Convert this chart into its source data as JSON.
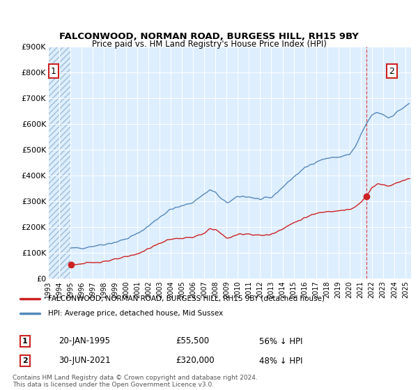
{
  "title": "FALCONWOOD, NORMAN ROAD, BURGESS HILL, RH15 9BY",
  "subtitle": "Price paid vs. HM Land Registry's House Price Index (HPI)",
  "background_color": "#ffffff",
  "plot_bg_color": "#ddeeff",
  "grid_color": "#ffffff",
  "ylim": [
    0,
    900000
  ],
  "yticks": [
    0,
    100000,
    200000,
    300000,
    400000,
    500000,
    600000,
    700000,
    800000,
    900000
  ],
  "ytick_labels": [
    "£0",
    "£100K",
    "£200K",
    "£300K",
    "£400K",
    "£500K",
    "£600K",
    "£700K",
    "£800K",
    "£900K"
  ],
  "xlim_start": 1993.0,
  "xlim_end": 2025.5,
  "xticks": [
    1993,
    1994,
    1995,
    1996,
    1997,
    1998,
    1999,
    2000,
    2001,
    2002,
    2003,
    2004,
    2005,
    2006,
    2007,
    2008,
    2009,
    2010,
    2011,
    2012,
    2013,
    2014,
    2015,
    2016,
    2017,
    2018,
    2019,
    2020,
    2021,
    2022,
    2023,
    2024,
    2025
  ],
  "hpi_line_color": "#5588bb",
  "price_line_color": "#cc2222",
  "vline_color": "#dd3333",
  "annotation_box_color": "#cc2222",
  "sale1_date": 1995.055,
  "sale1_price": 55500,
  "sale1_label": "1",
  "sale2_date": 2021.5,
  "sale2_price": 320000,
  "sale2_label": "2",
  "hatch_end": 1995.0,
  "legend_label_red": "FALCONWOOD, NORMAN ROAD, BURGESS HILL, RH15 9BY (detached house)",
  "legend_label_blue": "HPI: Average price, detached house, Mid Sussex",
  "footer_text": "Contains HM Land Registry data © Crown copyright and database right 2024.\nThis data is licensed under the Open Government Licence v3.0."
}
